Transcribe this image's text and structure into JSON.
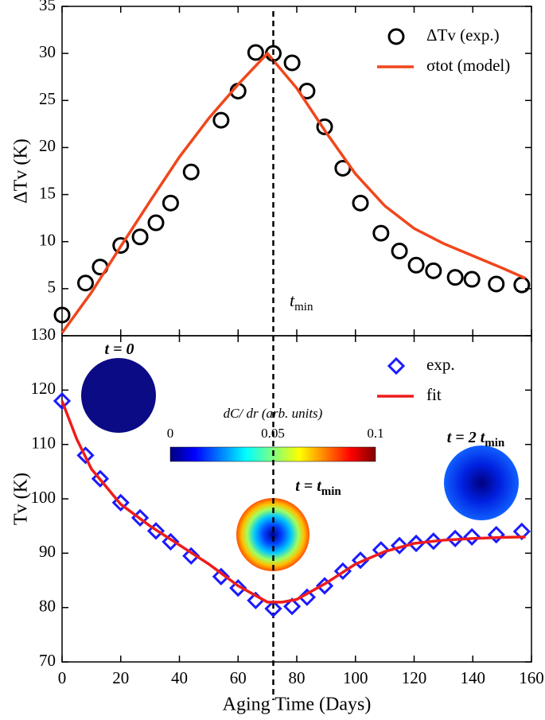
{
  "chart_data": [
    {
      "type": "scatter",
      "y_label": "ΔTv (K)",
      "xlim": [
        0,
        160
      ],
      "xticks": [
        0,
        20,
        40,
        60,
        80,
        100,
        120,
        140,
        160
      ],
      "ylim": [
        0,
        35
      ],
      "yticks": [
        5,
        10,
        15,
        20,
        25,
        30,
        35
      ],
      "legend": "upper right",
      "vline_x": 72,
      "annotations": [
        {
          "text": "t",
          "sub": "min"
        }
      ],
      "series": [
        {
          "name": "ΔTv (exp.)",
          "color": "#000000",
          "mode": "markers",
          "marker": "circle",
          "x": [
            0,
            8,
            13,
            20,
            26.6,
            32,
            37,
            44,
            54.2,
            60,
            66,
            72,
            78.4,
            83.5,
            89.5,
            95.7,
            101.7,
            108.7,
            115,
            120.7,
            126.6,
            134,
            139.7,
            148,
            156.7
          ],
          "values": [
            2.2,
            5.6,
            7.3,
            9.6,
            10.5,
            12,
            14.1,
            17.4,
            22.9,
            26,
            30.1,
            30,
            29,
            26,
            22.2,
            17.8,
            14.1,
            10.9,
            9,
            7.5,
            6.9,
            6.2,
            6,
            5.5,
            5.4
          ]
        },
        {
          "name": "σtot (model)",
          "color": "#f0461c",
          "mode": "line",
          "x": [
            0,
            10,
            20,
            30,
            40,
            50,
            60,
            70,
            80,
            90,
            100,
            110,
            120,
            130,
            140,
            150,
            158
          ],
          "values": [
            0.3,
            4.6,
            9.5,
            14.3,
            19,
            23.1,
            26.7,
            30,
            26.3,
            21.6,
            17.2,
            13.8,
            11.4,
            9.8,
            8.5,
            7.2,
            6.1
          ]
        }
      ]
    },
    {
      "type": "scatter",
      "x_label": "Aging Time (Days)",
      "y_label": "Tv (K)",
      "xlim": [
        0,
        160
      ],
      "xticks": [
        0,
        20,
        40,
        60,
        80,
        100,
        120,
        140,
        160
      ],
      "ylim": [
        70,
        130
      ],
      "yticks": [
        70,
        80,
        90,
        100,
        110,
        120,
        130
      ],
      "legend": "upper right",
      "annotations": [
        {
          "text": "t = 0"
        },
        {
          "text": "t =  t",
          "sub": "min"
        },
        {
          "text": "t = 2 t",
          "sub": "min"
        }
      ],
      "colorbar": {
        "label": "dC/ dr (arb. units)",
        "lim": [
          0,
          0.1
        ],
        "ticks": [
          0,
          0.05,
          0.1
        ]
      },
      "series": [
        {
          "name": "exp.",
          "color": "#1a1aff",
          "mode": "markers",
          "marker": "diamond",
          "x": [
            0,
            8,
            13,
            20,
            26.6,
            32,
            37,
            44,
            54.2,
            60,
            66,
            72,
            78.4,
            83.5,
            89.5,
            95.7,
            101.7,
            108.7,
            115,
            120.7,
            126.6,
            134,
            139.7,
            148,
            156.7
          ],
          "values": [
            118,
            108,
            103.7,
            99.3,
            96.5,
            94.1,
            92.1,
            89.5,
            85.7,
            83.6,
            81.3,
            79.8,
            80.2,
            81.9,
            84,
            86.7,
            88.7,
            90.6,
            91.4,
            91.8,
            92.2,
            92.7,
            93,
            93.4,
            94
          ]
        },
        {
          "name": "fit",
          "color": "#ee1c1c",
          "mode": "line",
          "x": [
            0,
            5,
            10,
            20,
            30,
            40,
            50,
            60,
            70,
            75,
            80,
            90,
            100,
            110,
            120,
            130,
            140,
            150,
            158
          ],
          "values": [
            118,
            111,
            105.5,
            99,
            95,
            91.5,
            88,
            84,
            81,
            81,
            81.5,
            84.5,
            88,
            90.3,
            91.8,
            92.4,
            92.7,
            92.9,
            93
          ]
        }
      ]
    }
  ]
}
